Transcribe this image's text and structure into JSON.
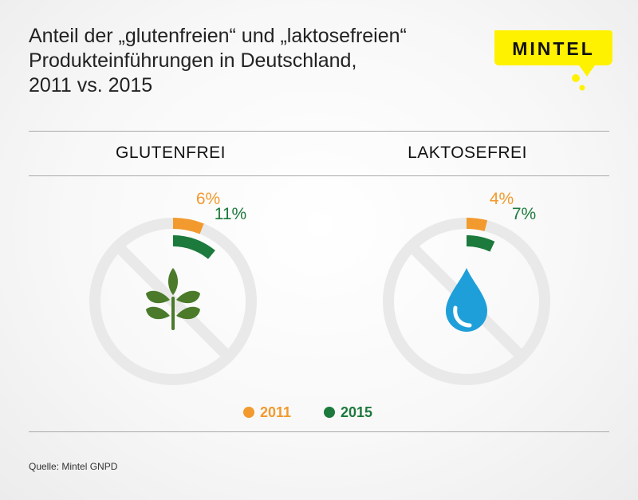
{
  "header": {
    "title_lines": [
      "Anteil der „glutenfreien“ und „laktosefreien“",
      "Produkteinführungen in Deutschland,",
      "2011 vs. 2015"
    ],
    "logo_text": "MINTEL"
  },
  "colors": {
    "c2011": "#f29a2e",
    "c2015": "#1c7a3c",
    "ring": "#e9e9e9",
    "wheat": "#4a7a2a",
    "drop": "#1f9fd9",
    "logo_bg": "#fff200"
  },
  "chart_data": [
    {
      "type": "radial-bar",
      "title": "GLUTENFREI",
      "icon": "wheat-icon",
      "series": [
        {
          "name": "2011",
          "value": 6,
          "label": "6%"
        },
        {
          "name": "2015",
          "value": 11,
          "label": "11%"
        }
      ],
      "unit": "%",
      "range": [
        0,
        100
      ]
    },
    {
      "type": "radial-bar",
      "title": "LAKTOSEFREI",
      "icon": "water-drop-icon",
      "series": [
        {
          "name": "2011",
          "value": 4,
          "label": "4%"
        },
        {
          "name": "2015",
          "value": 7,
          "label": "7%"
        }
      ],
      "unit": "%",
      "range": [
        0,
        100
      ]
    }
  ],
  "legend": [
    {
      "label": "2011"
    },
    {
      "label": "2015"
    }
  ],
  "footer": {
    "source": "Quelle: Mintel GNPD"
  }
}
